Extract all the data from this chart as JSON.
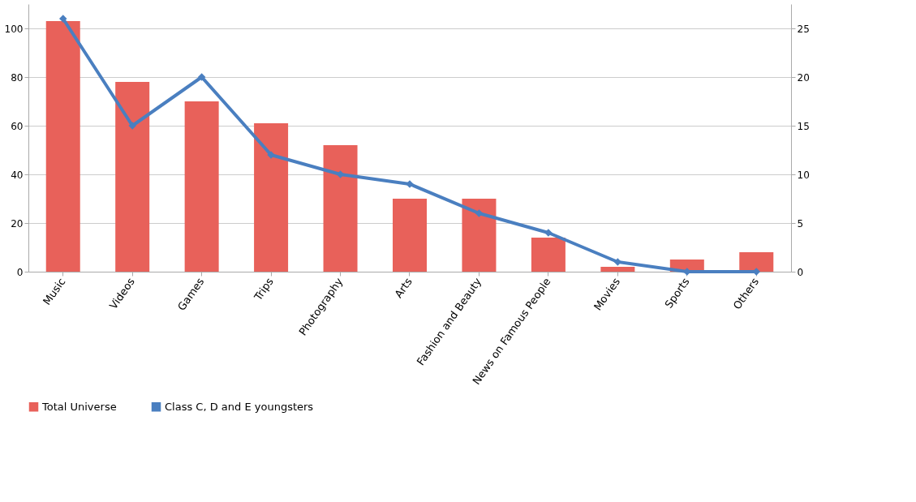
{
  "chart_data": {
    "type": "bar",
    "categories": [
      "Music",
      "Videos",
      "Games",
      "Trips",
      "Photography",
      "Arts",
      "Fashion and Beauty",
      "News on Famous People",
      "Movies",
      "Sports",
      "Others"
    ],
    "series": [
      {
        "name": "Total Universe",
        "color": "#e8615a",
        "values": [
          103,
          78,
          70,
          61,
          52,
          30,
          30,
          14,
          2,
          5,
          8
        ]
      },
      {
        "name": "Class C, D and E youngsters",
        "type": "line",
        "axis": "y2",
        "color": "#4a7fc0",
        "values": [
          26,
          15,
          20,
          12,
          10,
          9,
          6,
          4,
          1,
          0,
          0
        ]
      }
    ],
    "ylim": [
      0,
      110
    ],
    "yticks": [
      0,
      20,
      40,
      60,
      80,
      100
    ],
    "y2lim": [
      0,
      27.5
    ],
    "y2ticks": [
      0,
      5,
      10,
      15,
      20,
      25
    ],
    "grid": "y",
    "legend": "bottom",
    "marker": "diamond"
  }
}
